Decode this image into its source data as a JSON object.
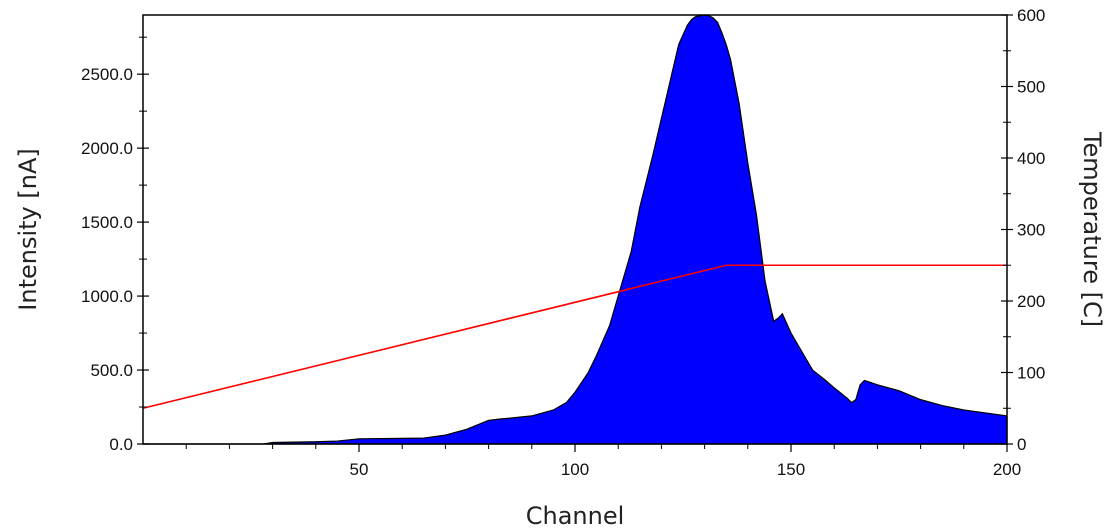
{
  "chart_data": {
    "type": "area",
    "xlabel": "Channel",
    "ylabel": "Intensity [nA]",
    "y2label": "Temperature [C]",
    "xlim": [
      0,
      200
    ],
    "ylim": [
      0,
      2900
    ],
    "y2lim": [
      0,
      600
    ],
    "x_ticks": [
      "50",
      "100",
      "150",
      "200"
    ],
    "y_ticks": [
      "0.0",
      "500.0",
      "1000.0",
      "1500.0",
      "2000.0",
      "2500.0"
    ],
    "y2_ticks": [
      "0",
      "100",
      "200",
      "300",
      "400",
      "500",
      "600"
    ],
    "grid": false,
    "legend": "none",
    "series": [
      {
        "axis": "left",
        "style": "filled-area",
        "color": "#0000ff",
        "x": [
          0,
          28,
          30,
          40,
          45,
          50,
          60,
          65,
          70,
          75,
          80,
          83,
          85,
          90,
          95,
          98,
          100,
          103,
          105,
          108,
          110,
          113,
          115,
          118,
          120,
          122,
          124,
          126,
          127,
          128,
          129,
          130,
          131,
          132,
          133,
          134,
          135,
          136,
          138,
          140,
          142,
          144,
          146,
          147,
          148,
          150,
          153,
          155,
          158,
          160,
          163,
          164,
          165,
          166,
          167,
          170,
          175,
          180,
          185,
          190,
          195,
          200
        ],
        "y": [
          0,
          0,
          10,
          15,
          20,
          35,
          38,
          40,
          60,
          100,
          160,
          170,
          175,
          190,
          230,
          280,
          350,
          480,
          600,
          800,
          1000,
          1300,
          1600,
          1950,
          2200,
          2450,
          2700,
          2830,
          2870,
          2890,
          2895,
          2900,
          2895,
          2880,
          2850,
          2780,
          2700,
          2600,
          2300,
          1900,
          1550,
          1100,
          830,
          850,
          880,
          750,
          600,
          500,
          430,
          380,
          310,
          280,
          300,
          400,
          430,
          400,
          360,
          300,
          260,
          230,
          210,
          190
        ]
      },
      {
        "axis": "right",
        "style": "line",
        "color": "#ff0000",
        "x": [
          0,
          135,
          200
        ],
        "y": [
          50,
          250,
          250
        ]
      }
    ]
  }
}
